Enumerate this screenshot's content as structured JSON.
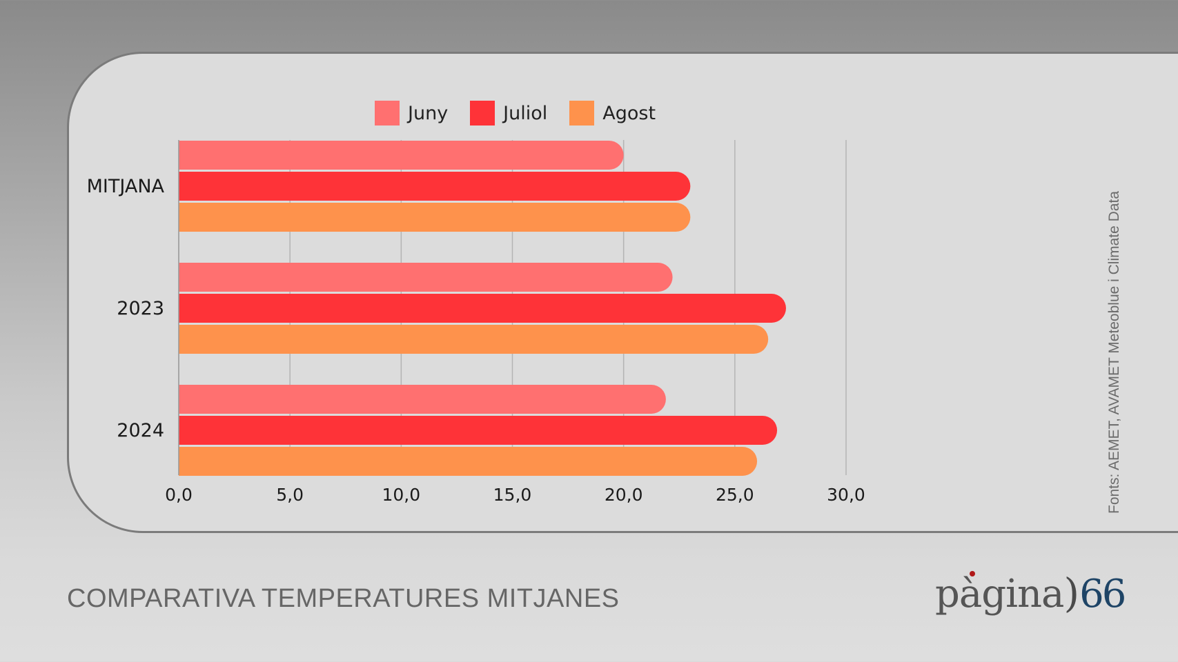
{
  "chart_data": {
    "type": "bar",
    "orientation": "horizontal",
    "title": "COMPARATIVA TEMPERATURES MITJANES",
    "categories": [
      "MITJANA",
      "2023",
      "2024"
    ],
    "series": [
      {
        "name": "Juny",
        "color": "#ff7070",
        "values": [
          20.0,
          22.2,
          21.9
        ]
      },
      {
        "name": "Juliol",
        "color": "#fe3338",
        "values": [
          23.0,
          27.3,
          26.9
        ]
      },
      {
        "name": "Agost",
        "color": "#fe924c",
        "values": [
          23.0,
          26.5,
          26.0
        ]
      }
    ],
    "xlim": [
      0,
      30
    ],
    "xticks": [
      "0,0",
      "5,0",
      "10,0",
      "15,0",
      "20,0",
      "25,0",
      "30,0"
    ],
    "grid": true,
    "legend_position": "top"
  },
  "source": "Fonts: AEMET, AVAMET  Meteoblue i Climate Data",
  "logo": {
    "word": "pàgina",
    "paren": ")",
    "number": "66"
  }
}
